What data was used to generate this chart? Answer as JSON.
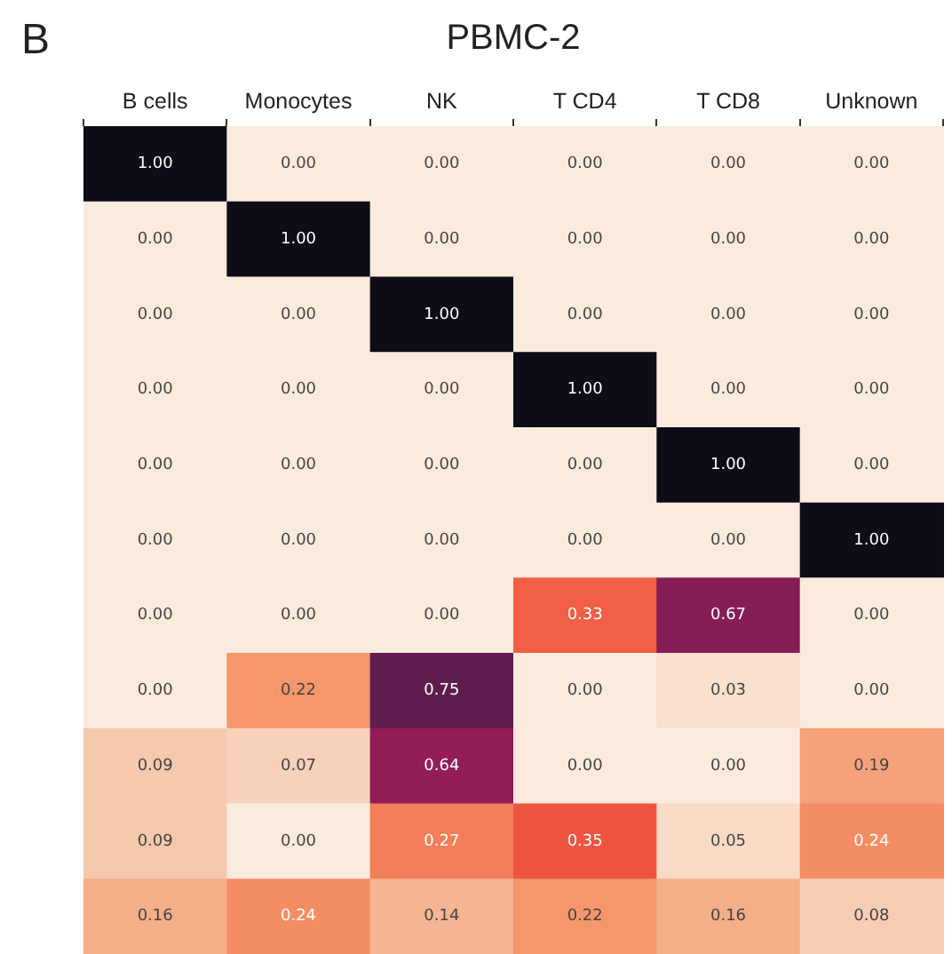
{
  "chart_data": {
    "type": "heatmap",
    "title": "PBMC-2",
    "annotations": [
      "B"
    ],
    "categories": [
      "B cells",
      "Monocytes",
      "NK",
      "T CD4",
      "T CD8",
      "Unknown"
    ],
    "y_categories": [
      null,
      null,
      null,
      null,
      null,
      null,
      null,
      null,
      null,
      null,
      null
    ],
    "cells": [
      [
        1.0,
        0.0,
        0.0,
        0.0,
        0.0,
        0.0
      ],
      [
        0.0,
        1.0,
        0.0,
        0.0,
        0.0,
        0.0
      ],
      [
        0.0,
        0.0,
        1.0,
        0.0,
        0.0,
        0.0
      ],
      [
        0.0,
        0.0,
        0.0,
        1.0,
        0.0,
        0.0
      ],
      [
        0.0,
        0.0,
        0.0,
        0.0,
        1.0,
        0.0
      ],
      [
        0.0,
        0.0,
        0.0,
        0.0,
        0.0,
        1.0
      ],
      [
        0.0,
        0.0,
        0.0,
        0.33,
        0.67,
        0.0
      ],
      [
        0.0,
        0.22,
        0.75,
        0.0,
        0.03,
        0.0
      ],
      [
        0.09,
        0.07,
        0.64,
        0.0,
        0.0,
        0.19
      ],
      [
        0.09,
        0.0,
        0.27,
        0.35,
        0.05,
        0.24
      ],
      [
        0.16,
        0.24,
        0.14,
        0.22,
        0.16,
        0.08
      ]
    ],
    "cell_labels": [
      [
        "1.00",
        "0.00",
        "0.00",
        "0.00",
        "0.00",
        "0.00"
      ],
      [
        "0.00",
        "1.00",
        "0.00",
        "0.00",
        "0.00",
        "0.00"
      ],
      [
        "0.00",
        "0.00",
        "1.00",
        "0.00",
        "0.00",
        "0.00"
      ],
      [
        "0.00",
        "0.00",
        "0.00",
        "1.00",
        "0.00",
        "0.00"
      ],
      [
        "0.00",
        "0.00",
        "0.00",
        "0.00",
        "1.00",
        "0.00"
      ],
      [
        "0.00",
        "0.00",
        "0.00",
        "0.00",
        "0.00",
        "1.00"
      ],
      [
        "0.00",
        "0.00",
        "0.00",
        "0.33",
        "0.67",
        "0.00"
      ],
      [
        "0.00",
        "0.22",
        "0.75",
        "0.00",
        "0.03",
        "0.00"
      ],
      [
        "0.09",
        "0.07",
        "0.64",
        "0.00",
        "0.00",
        "0.19"
      ],
      [
        "0.09",
        "0.00",
        "0.27",
        "0.35",
        "0.05",
        "0.24"
      ],
      [
        "0.16",
        "0.24",
        "0.14",
        "0.22",
        "0.16",
        "0.08"
      ]
    ],
    "tick_labels": "x"
  }
}
